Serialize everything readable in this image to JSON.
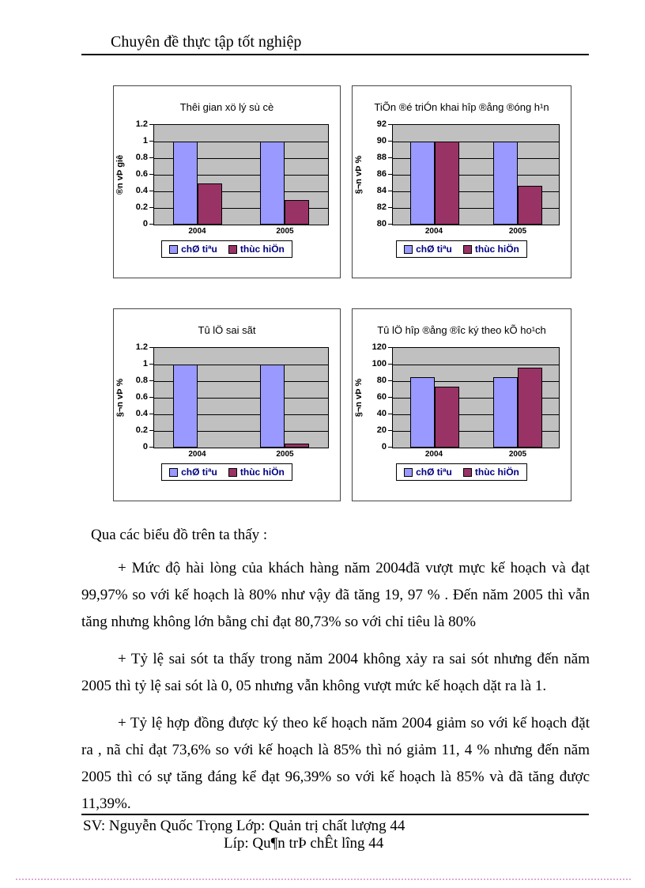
{
  "page": {
    "header_title": "Chuyên đề thực tập tốt nghiệp",
    "footer": {
      "line1": "SV: Nguyễn Quốc Trọng Lớp: Quản trị chất lượng 44",
      "line2": "Líp: Qu¶n trÞ chÊt lîng  44"
    }
  },
  "body": {
    "intro": "Qua các biểu đồ trên ta thấy :",
    "paragraphs": [
      "+ Mức độ hài lòng của khách hàng năm 2004đã vượt mực kế hoạch và đạt 99,97% so với kế hoạch là 80% như vậy đã tăng 19, 97 % . Đến năm 2005 thì vẫn tăng nhưng không lớn bằng chỉ đạt 80,73% so với chỉ tiêu là 80%",
      "+ Tỷ lệ sai sót ta thấy trong năm 2004 không xảy ra sai sót nhưng đến năm 2005 thì tỷ lệ sai sót là 0, 05 nhưng vẫn không vượt mức kế hoạch dặt ra là 1.",
      "+ Tỷ lệ hợp đồng được ký theo kế hoạch năm 2004 giảm so với kế hoạch đặt ra , nã chỉ đạt 73,6% so với kế hoạch là 85% thì nó giảm 11, 4 % nhưng đến năm 2005 thì có sự tăng đáng kể đạt 96,39% so với kế hoạch là 85% và đã tăng được 11,39%."
    ]
  },
  "colors": {
    "series1": "#9999ff",
    "series2": "#993366",
    "plot_background": "#c0c0c0",
    "legend_text": "#000080",
    "gridline": "#000000",
    "dotted_separator": "#dfa8d8"
  },
  "chart_data": [
    {
      "type": "bar",
      "title": "Thêi gian xö lý sù cè",
      "ylabel": "®n vÞ giê",
      "xlabel": "",
      "categories": [
        "2004",
        "2005"
      ],
      "series": [
        {
          "name": "chØ tiªu",
          "color": "#9999ff",
          "values": [
            1,
            1
          ]
        },
        {
          "name": "thùc hiÖn",
          "color": "#993366",
          "values": [
            0.5,
            0.3
          ]
        }
      ],
      "ylim": [
        0,
        1.2
      ],
      "ystep": 0.2,
      "grid": true,
      "legend_position": "bottom"
    },
    {
      "type": "bar",
      "title": "TiÕn ®é triÓn khai hîp ®ång ®óng h¹n",
      "ylabel": "§¬n vÞ %",
      "xlabel": "",
      "categories": [
        "2004",
        "2005"
      ],
      "series": [
        {
          "name": "chØ tiªu",
          "color": "#9999ff",
          "values": [
            90,
            90
          ]
        },
        {
          "name": "thùc hiÖn",
          "color": "#993366",
          "values": [
            90,
            84.7
          ]
        }
      ],
      "ylim": [
        80,
        92
      ],
      "ystep": 2,
      "grid": true,
      "legend_position": "bottom"
    },
    {
      "type": "bar",
      "title": "Tû lÖ sai sãt",
      "ylabel": "§¬n vÞ %",
      "xlabel": "",
      "categories": [
        "2004",
        "2005"
      ],
      "series": [
        {
          "name": "chØ tiªu",
          "color": "#9999ff",
          "values": [
            1,
            1
          ]
        },
        {
          "name": "thùc hiÖn",
          "color": "#993366",
          "values": [
            0,
            0.05
          ]
        }
      ],
      "ylim": [
        0,
        1.2
      ],
      "ystep": 0.2,
      "grid": true,
      "legend_position": "bottom"
    },
    {
      "type": "bar",
      "title": "Tû lÖ hîp ®ång ®­îc ký theo kÕ ho¹ch",
      "ylabel": "§¬n vÞ %",
      "xlabel": "",
      "categories": [
        "2004",
        "2005"
      ],
      "series": [
        {
          "name": "chØ tiªu",
          "color": "#9999ff",
          "values": [
            85,
            85
          ]
        },
        {
          "name": "thùc hiÖn",
          "color": "#993366",
          "values": [
            73.6,
            96.39
          ]
        }
      ],
      "ylim": [
        0,
        120
      ],
      "ystep": 20,
      "grid": true,
      "legend_position": "bottom"
    }
  ]
}
